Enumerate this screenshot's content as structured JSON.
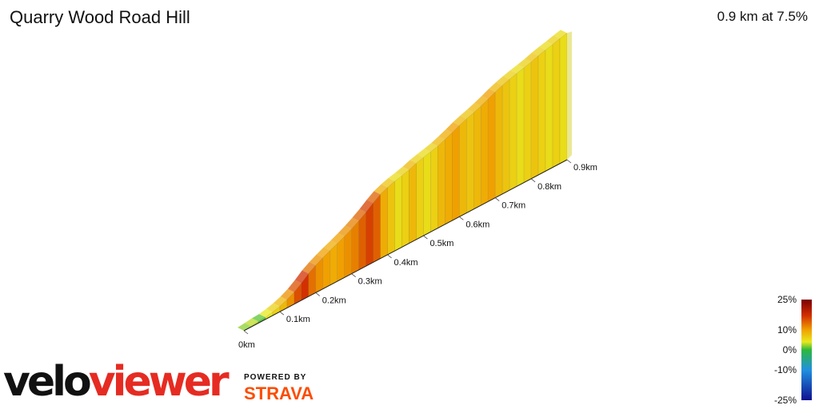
{
  "header": {
    "title": "Quarry Wood Road Hill",
    "summary": "0.9 km at 7.5%"
  },
  "branding": {
    "logo_part1": "velo",
    "logo_part2": "viewer",
    "powered_by": "POWERED BY",
    "strava": "STRAVA"
  },
  "chart_data": {
    "type": "area",
    "title": "Quarry Wood Road Hill",
    "subtitle": "0.9 km at 7.5%",
    "x_unit": "km",
    "distance_km": 0.9,
    "average_gradient_pct": 7.5,
    "x_ticks": [
      "0km",
      "0.1km",
      "0.2km",
      "0.3km",
      "0.4km",
      "0.5km",
      "0.6km",
      "0.7km",
      "0.8km",
      "0.9km"
    ],
    "gradient_segments_pct": [
      2,
      3,
      1,
      4,
      6,
      8,
      11,
      15,
      17,
      13,
      11,
      10,
      9,
      10,
      11,
      12,
      14,
      16,
      14,
      9,
      7,
      5,
      6,
      8,
      6,
      5,
      6,
      8,
      9,
      10,
      8,
      7,
      8,
      9,
      10,
      8,
      7,
      6,
      5,
      6,
      7,
      6,
      5,
      6,
      5
    ],
    "legend": {
      "labels": [
        "25%",
        "10%",
        "0%",
        "-10%",
        "-25%"
      ],
      "values": [
        25,
        10,
        0,
        -10,
        -25
      ]
    },
    "colors": {
      "green": "#2db83d",
      "yellow": "#e8e81e",
      "orange": "#f0a000",
      "red": "#d23000",
      "dark_red": "#7a0000"
    }
  }
}
